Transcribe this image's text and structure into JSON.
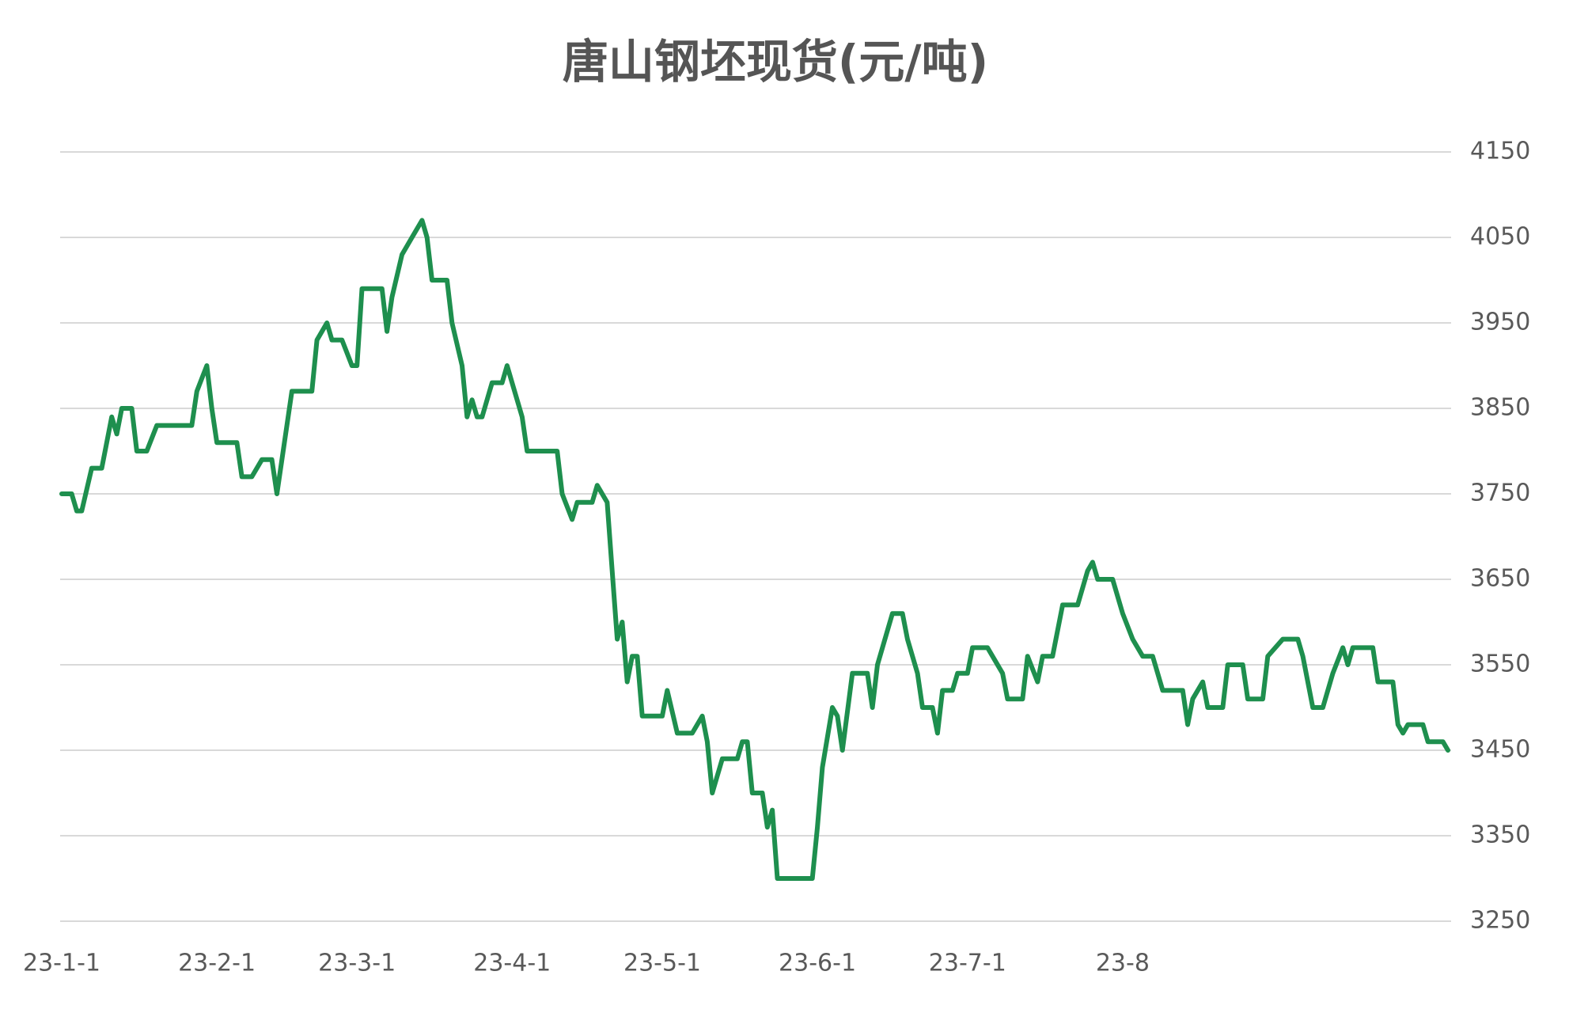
{
  "chart_data": {
    "type": "line",
    "title": "唐山钢坯现货(元/吨)",
    "x": [
      "23-1-1",
      "23-1-3",
      "23-1-4",
      "23-1-5",
      "23-1-7",
      "23-1-9",
      "23-1-11",
      "23-1-12",
      "23-1-13",
      "23-1-15",
      "23-1-16",
      "23-1-18",
      "23-1-20",
      "23-1-27",
      "23-1-28",
      "23-1-30",
      "23-1-31",
      "23-2-1",
      "23-2-5",
      "23-2-6",
      "23-2-8",
      "23-2-10",
      "23-2-12",
      "23-2-13",
      "23-2-14",
      "23-2-16",
      "23-2-20",
      "23-2-21",
      "23-2-23",
      "23-2-24",
      "23-2-26",
      "23-2-28",
      "23-3-1",
      "23-3-2",
      "23-3-6",
      "23-3-7",
      "23-3-8",
      "23-3-10",
      "23-3-12",
      "23-3-14",
      "23-3-15",
      "23-3-16",
      "23-3-19",
      "23-3-20",
      "23-3-22",
      "23-3-23",
      "23-3-24",
      "23-3-25",
      "23-3-26",
      "23-3-28",
      "23-3-30",
      "23-3-31",
      "23-4-1",
      "23-4-3",
      "23-4-4",
      "23-4-10",
      "23-4-11",
      "23-4-13",
      "23-4-14",
      "23-4-17",
      "23-4-18",
      "23-4-20",
      "23-4-21",
      "23-4-22",
      "23-4-23",
      "23-4-24",
      "23-4-25",
      "23-4-26",
      "23-4-27",
      "23-5-1",
      "23-5-2",
      "23-5-4",
      "23-5-7",
      "23-5-9",
      "23-5-10",
      "23-5-11",
      "23-5-13",
      "23-5-16",
      "23-5-17",
      "23-5-18",
      "23-5-19",
      "23-5-21",
      "23-5-22",
      "23-5-23",
      "23-5-24",
      "23-5-31",
      "23-6-1",
      "23-6-2",
      "23-6-4",
      "23-6-5",
      "23-6-6",
      "23-6-8",
      "23-6-11",
      "23-6-12",
      "23-6-13",
      "23-6-16",
      "23-6-18",
      "23-6-19",
      "23-6-21",
      "23-6-22",
      "23-6-24",
      "23-6-25",
      "23-6-26",
      "23-6-28",
      "23-6-29",
      "23-7-1",
      "23-7-2",
      "23-7-5",
      "23-7-8",
      "23-7-9",
      "23-7-12",
      "23-7-13",
      "23-7-15",
      "23-7-16",
      "23-7-18",
      "23-7-20",
      "23-7-23",
      "23-7-25",
      "23-7-26",
      "23-7-27",
      "23-7-30",
      "23-8-1",
      "23-8-3",
      "23-8-5",
      "23-8-7",
      "23-8-9",
      "23-8-13",
      "23-8-14",
      "23-8-15",
      "23-8-17",
      "23-8-18",
      "23-8-21",
      "23-8-22",
      "23-8-25",
      "23-8-26",
      "23-8-29",
      "23-8-30",
      "23-9-2",
      "23-9-5",
      "23-9-6",
      "23-9-8",
      "23-9-10",
      "23-9-12",
      "23-9-14",
      "23-9-15",
      "23-9-16",
      "23-9-20",
      "23-9-21",
      "23-9-24",
      "23-9-25",
      "23-9-26",
      "23-9-27",
      "23-9-30",
      "23-10-1",
      "23-10-4",
      "23-10-5"
    ],
    "series": [
      {
        "color": "#1e8f4e",
        "values": [
          3750,
          3750,
          3730,
          3730,
          3780,
          3780,
          3840,
          3820,
          3850,
          3850,
          3800,
          3800,
          3830,
          3830,
          3870,
          3900,
          3850,
          3810,
          3810,
          3770,
          3770,
          3790,
          3790,
          3750,
          3790,
          3870,
          3870,
          3930,
          3950,
          3930,
          3930,
          3900,
          3900,
          3990,
          3990,
          3940,
          3980,
          4030,
          4050,
          4070,
          4050,
          4000,
          4000,
          3950,
          3900,
          3840,
          3860,
          3840,
          3840,
          3880,
          3880,
          3900,
          3880,
          3840,
          3800,
          3800,
          3750,
          3720,
          3740,
          3740,
          3760,
          3740,
          3660,
          3580,
          3600,
          3530,
          3560,
          3560,
          3490,
          3490,
          3520,
          3470,
          3470,
          3490,
          3460,
          3400,
          3440,
          3440,
          3460,
          3460,
          3400,
          3400,
          3360,
          3380,
          3300,
          3300,
          3360,
          3430,
          3500,
          3490,
          3450,
          3540,
          3540,
          3500,
          3550,
          3610,
          3610,
          3580,
          3540,
          3500,
          3500,
          3470,
          3520,
          3520,
          3540,
          3540,
          3570,
          3570,
          3540,
          3510,
          3510,
          3560,
          3530,
          3560,
          3560,
          3620,
          3620,
          3660,
          3670,
          3650,
          3650,
          3610,
          3580,
          3560,
          3560,
          3520,
          3520,
          3480,
          3510,
          3530,
          3500,
          3500,
          3550,
          3550,
          3510,
          3510,
          3560,
          3580,
          3580,
          3560,
          3500,
          3500,
          3540,
          3570,
          3550,
          3570,
          3570,
          3530,
          3530,
          3480,
          3470,
          3480,
          3480,
          3460,
          3460,
          3450
        ]
      }
    ],
    "xlim": [
      "23-1-1",
      "23-10-5"
    ],
    "xticks": [
      "23-1-1",
      "23-2-1",
      "23-3-1",
      "23-4-1",
      "23-5-1",
      "23-6-1",
      "23-7-1",
      {
        "value": "23-8-1",
        "label": "23-8"
      }
    ],
    "ylim": [
      3250,
      4150
    ],
    "yticks": [
      3250,
      3350,
      3450,
      3550,
      3650,
      3750,
      3850,
      3950,
      4050,
      4150
    ],
    "grid": true,
    "y_axis_side": "right"
  }
}
